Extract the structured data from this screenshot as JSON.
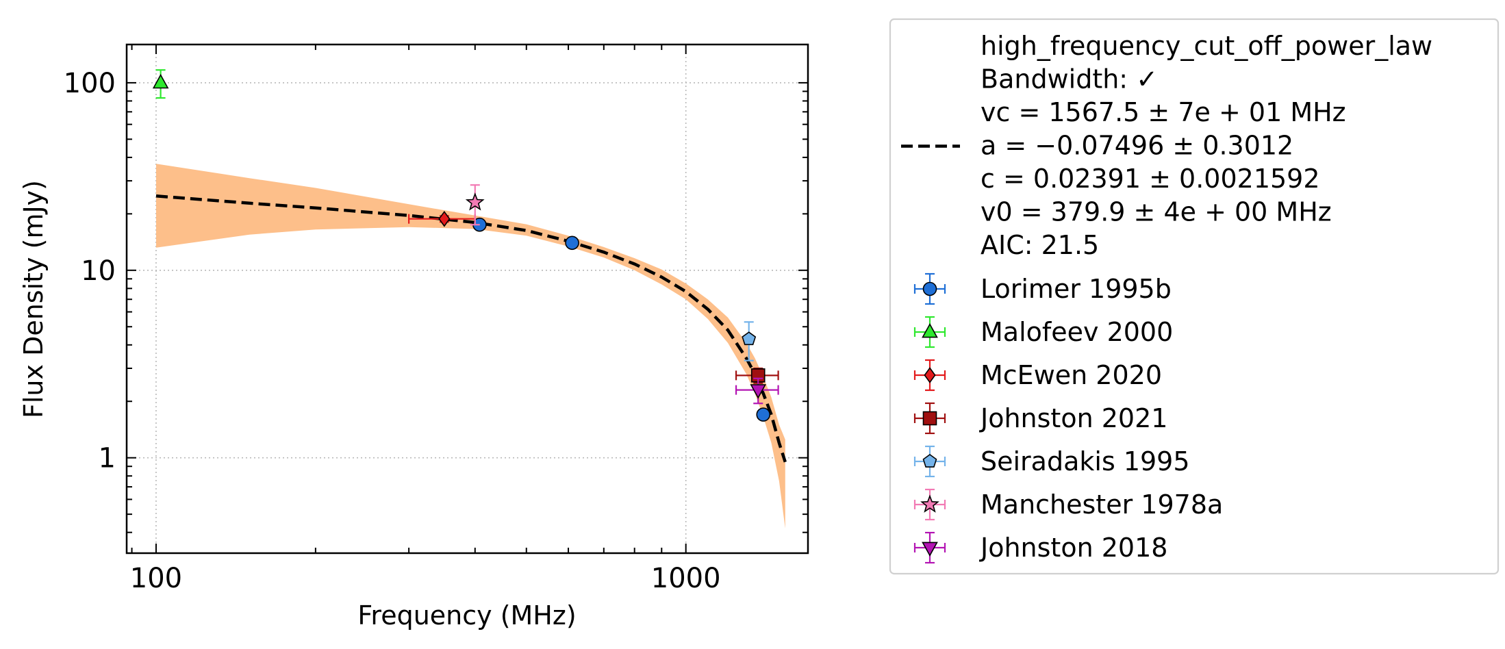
{
  "chart_data": {
    "type": "scatter",
    "xlabel": "Frequency (MHz)",
    "ylabel": "Flux Density (mJy)",
    "xscale": "log",
    "yscale": "log",
    "xlim": [
      88,
      1700
    ],
    "ylim": [
      0.31,
      160
    ],
    "x_ticks": [
      {
        "value": 100,
        "label": "100"
      },
      {
        "value": 1000,
        "label": "1000"
      }
    ],
    "y_ticks": [
      {
        "value": 1,
        "label": "1"
      },
      {
        "value": 10,
        "label": "10"
      },
      {
        "value": 100,
        "label": "100"
      }
    ],
    "grid": true,
    "legend_position": "outside-right",
    "fit": {
      "legend_lines": [
        "high_frequency_cut_off_power_law",
        "Bandwidth: ✓",
        "vc = 1567.5 ± 7e + 01 MHz",
        "a = −0.07496 ± 0.3012",
        "c = 0.02391 ± 0.0021592",
        "v0 = 379.9 ± 4e + 00 MHz",
        "AIC: 21.5"
      ],
      "color": "#000000",
      "band_color": "#fdbf8a",
      "curve": {
        "x": [
          100,
          150,
          200,
          300,
          400,
          500,
          600,
          700,
          800,
          900,
          1000,
          1100,
          1200,
          1300,
          1350,
          1400,
          1450,
          1500,
          1540
        ],
        "y": [
          24.9,
          22.8,
          21.5,
          19.6,
          18.0,
          16.3,
          14.3,
          12.5,
          10.8,
          9.2,
          7.7,
          6.2,
          4.8,
          3.4,
          2.8,
          2.2,
          1.7,
          1.2,
          0.95
        ]
      },
      "band": {
        "x": [
          100,
          150,
          200,
          300,
          400,
          500,
          600,
          700,
          800,
          900,
          1000,
          1100,
          1200,
          1300,
          1350,
          1400,
          1450,
          1500,
          1540
        ],
        "upper": [
          37.0,
          31.0,
          27.5,
          22.5,
          19.6,
          17.6,
          15.3,
          13.3,
          11.6,
          10.1,
          8.5,
          7.0,
          5.6,
          4.1,
          3.4,
          2.7,
          2.1,
          1.5,
          1.25
        ],
        "lower": [
          13.2,
          15.5,
          16.5,
          17.0,
          16.6,
          15.3,
          13.4,
          11.7,
          10.0,
          8.4,
          7.0,
          5.5,
          4.1,
          2.8,
          2.2,
          1.65,
          1.2,
          0.75,
          0.42
        ]
      }
    },
    "series": [
      {
        "name": "Lorimer 1995b",
        "marker": "circle",
        "color": "#1f6fd6",
        "points": [
          {
            "x": 408,
            "y": 17.5,
            "yerr": 0.6,
            "xerr": 0
          },
          {
            "x": 610,
            "y": 14.0,
            "yerr": 0.5,
            "xerr": 0
          },
          {
            "x": 1400,
            "y": 1.7,
            "yerr": 0.08,
            "xerr": 0
          }
        ]
      },
      {
        "name": "Malofeev 2000",
        "marker": "triangle-up",
        "color": "#2ee82e",
        "points": [
          {
            "x": 102,
            "y": 100,
            "yerr": 17,
            "xerr": 0
          }
        ]
      },
      {
        "name": "McEwen 2020",
        "marker": "diamond",
        "color": "#e31a1c",
        "points": [
          {
            "x": 350,
            "y": 18.8,
            "yerr": 0.7,
            "xerr": 50
          }
        ]
      },
      {
        "name": "Johnston 2021",
        "marker": "square",
        "color": "#a01010",
        "points": [
          {
            "x": 1369,
            "y": 2.75,
            "yerr": 0.25,
            "xerr": 125
          }
        ]
      },
      {
        "name": "Seiradakis 1995",
        "marker": "pentagon",
        "color": "#74b3ea",
        "points": [
          {
            "x": 1315,
            "y": 4.3,
            "yerr": 1.0,
            "xerr": 0
          }
        ]
      },
      {
        "name": "Manchester 1978a",
        "marker": "star",
        "color": "#f27ab4",
        "points": [
          {
            "x": 400,
            "y": 23.0,
            "yerr": 5.5,
            "xerr": 0
          }
        ]
      },
      {
        "name": "Johnston 2018",
        "marker": "triangle-down",
        "color": "#b314b3",
        "points": [
          {
            "x": 1369,
            "y": 2.3,
            "yerr": 0.35,
            "xerr": 125
          }
        ]
      }
    ]
  }
}
